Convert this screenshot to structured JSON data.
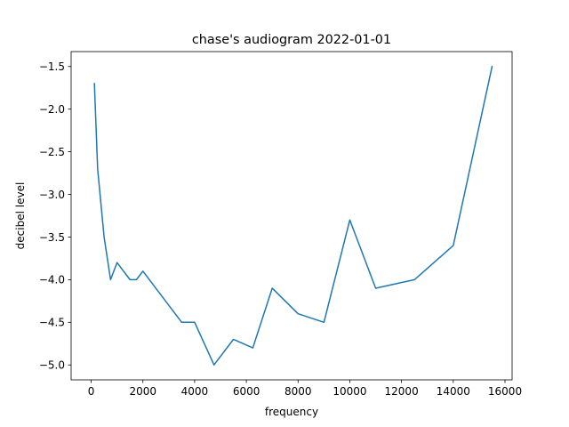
{
  "chart_data": {
    "type": "line",
    "title": "chase's audiogram 2022-01-01",
    "xlabel": "frequency",
    "ylabel": "decibel level",
    "xlim": [
      -775,
      16275
    ],
    "ylim": [
      -5.175,
      -1.325
    ],
    "grid": false,
    "line_color": "#1f77b4",
    "x_ticks": [
      0,
      2000,
      4000,
      6000,
      8000,
      10000,
      12000,
      14000,
      16000
    ],
    "x_tick_labels": [
      "0",
      "2000",
      "4000",
      "6000",
      "8000",
      "10000",
      "12000",
      "14000",
      "16000"
    ],
    "y_ticks": [
      -5.0,
      -4.5,
      -4.0,
      -3.5,
      -3.0,
      -2.5,
      -2.0,
      -1.5
    ],
    "y_tick_labels": [
      "−5.0",
      "−4.5",
      "−4.0",
      "−3.5",
      "−3.0",
      "−2.5",
      "−2.0",
      "−1.5"
    ],
    "series": [
      {
        "x": [
          125,
          250,
          375,
          500,
          750,
          1000,
          1500,
          1750,
          2000,
          3500,
          4000,
          4750,
          5500,
          6250,
          7000,
          8000,
          9000,
          10000,
          11000,
          12500,
          14000,
          15500
        ],
        "y": [
          -1.7,
          -2.7,
          -3.1,
          -3.5,
          -4.0,
          -3.8,
          -4.0,
          -4.0,
          -3.9,
          -4.5,
          -4.5,
          -5.0,
          -4.7,
          -4.8,
          -4.1,
          -4.4,
          -4.5,
          -3.3,
          -4.1,
          -4.0,
          -3.6,
          -1.5
        ]
      }
    ]
  }
}
